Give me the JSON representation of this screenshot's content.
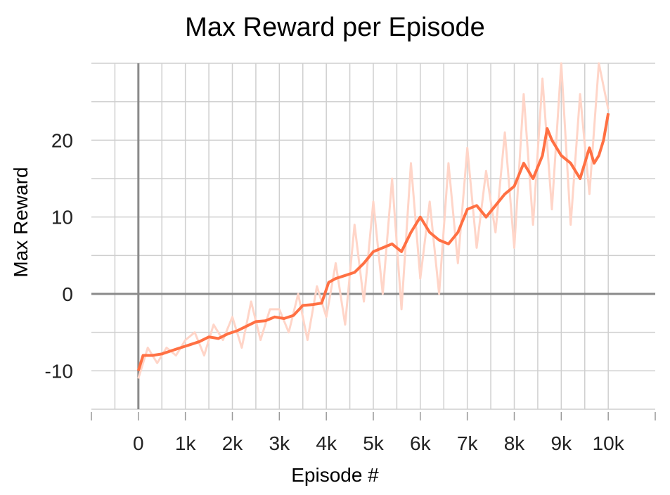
{
  "chart_data": {
    "type": "line",
    "title": "Max Reward per Episode",
    "xlabel": "Episode #",
    "ylabel": "Max Reward",
    "xlim": [
      -1000,
      11000
    ],
    "ylim": [
      -15,
      30
    ],
    "grid": true,
    "x_ticks": [
      0,
      1000,
      2000,
      3000,
      4000,
      5000,
      6000,
      7000,
      8000,
      9000,
      10000
    ],
    "x_tick_labels": [
      "0",
      "1k",
      "2k",
      "3k",
      "4k",
      "5k",
      "6k",
      "7k",
      "8k",
      "9k",
      "10k"
    ],
    "y_ticks": [
      -10,
      0,
      10,
      20
    ],
    "y_tick_labels": [
      "-10",
      "0",
      "10",
      "20"
    ],
    "colors": {
      "smoothed": "#ff7043",
      "raw": "#ffd5c8",
      "grid": "#cfcfcf",
      "axis": "#8a8a8a"
    },
    "series": [
      {
        "role": "raw",
        "x": [
          0,
          200,
          400,
          600,
          800,
          1000,
          1200,
          1400,
          1600,
          1800,
          2000,
          2200,
          2400,
          2600,
          2800,
          3000,
          3200,
          3400,
          3600,
          3800,
          4000,
          4200,
          4400,
          4600,
          4800,
          5000,
          5200,
          5400,
          5600,
          5800,
          6000,
          6200,
          6400,
          6600,
          6800,
          7000,
          7200,
          7400,
          7600,
          7800,
          8000,
          8200,
          8400,
          8600,
          8800,
          9000,
          9200,
          9400,
          9600,
          9800,
          10000
        ],
        "y": [
          -11,
          -7,
          -9,
          -7,
          -8,
          -6,
          -5,
          -8,
          -4,
          -6,
          -3,
          -7,
          -1,
          -6,
          -2,
          -2,
          -5,
          0,
          -6,
          1,
          -3,
          4,
          -4,
          9,
          -1,
          12,
          0,
          15,
          -2,
          17,
          2,
          12,
          0,
          17,
          4,
          19,
          6,
          16,
          8,
          21,
          6,
          26,
          9,
          28,
          11,
          30,
          9,
          26,
          13,
          30,
          24
        ]
      },
      {
        "role": "smoothed",
        "x": [
          0,
          100,
          300,
          500,
          700,
          900,
          1100,
          1300,
          1500,
          1700,
          1900,
          2100,
          2300,
          2500,
          2700,
          2900,
          3100,
          3300,
          3500,
          3700,
          3900,
          4050,
          4200,
          4400,
          4600,
          4800,
          5000,
          5200,
          5400,
          5600,
          5800,
          6000,
          6200,
          6400,
          6600,
          6800,
          7000,
          7200,
          7400,
          7600,
          7800,
          8000,
          8200,
          8400,
          8600,
          8700,
          8800,
          9000,
          9200,
          9400,
          9500,
          9600,
          9700,
          9800,
          9900,
          10000
        ],
        "y": [
          -10,
          -8,
          -8,
          -7.8,
          -7.4,
          -7,
          -6.6,
          -6.2,
          -5.6,
          -5.8,
          -5.2,
          -4.8,
          -4.2,
          -3.6,
          -3.5,
          -3,
          -3.2,
          -2.8,
          -1.5,
          -1.4,
          -1.2,
          1.5,
          2,
          2.4,
          2.8,
          4,
          5.5,
          6,
          6.5,
          5.5,
          8,
          10,
          8,
          7,
          6.5,
          8,
          11,
          11.5,
          10,
          11.5,
          13,
          14,
          17,
          15,
          18,
          21.5,
          20,
          18,
          17,
          15,
          17,
          19,
          17,
          18,
          20,
          23.5
        ]
      }
    ]
  }
}
